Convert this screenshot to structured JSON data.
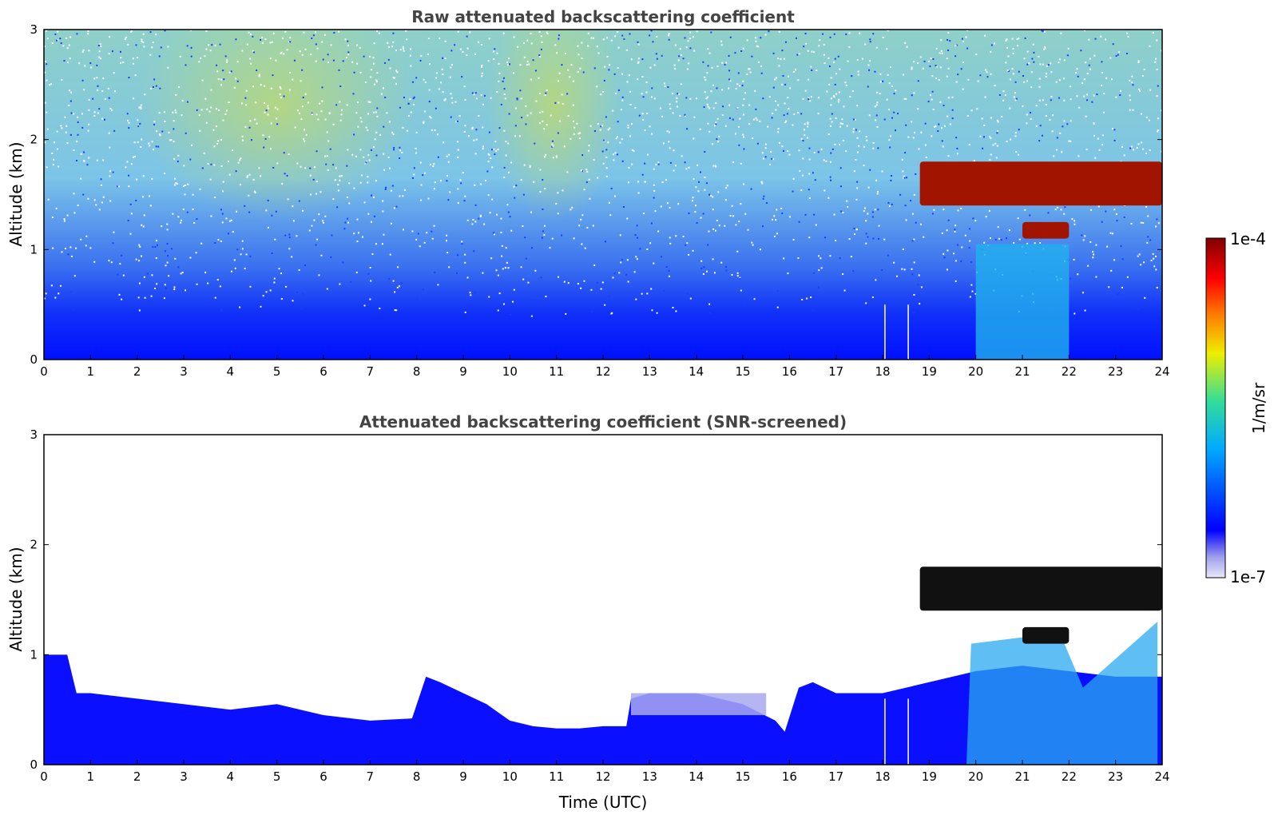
{
  "chart_data": [
    {
      "type": "heatmap",
      "title": "Raw attenuated backscattering coefficient",
      "xlabel": "",
      "ylabel": "Altitude (km)",
      "xlim": [
        0,
        24
      ],
      "ylim": [
        0,
        3
      ],
      "x_ticks": [
        "0",
        "1",
        "2",
        "3",
        "4",
        "5",
        "6",
        "7",
        "8",
        "9",
        "10",
        "11",
        "12",
        "13",
        "14",
        "15",
        "16",
        "17",
        "18",
        "19",
        "20",
        "21",
        "22",
        "23",
        "24"
      ],
      "y_ticks": [
        "0",
        "1",
        "2",
        "3"
      ],
      "grid": false,
      "scale": "log",
      "data_gaps_utc": [
        18.05,
        18.55
      ],
      "features": {
        "boundary_layer_top_km": 0.6,
        "cloud_layer_1": {
          "time_utc": [
            18.8,
            24.0
          ],
          "altitude_km": [
            1.4,
            1.8
          ],
          "level": "1e-4"
        },
        "cloud_layer_2": {
          "time_utc": [
            21.0,
            22.0
          ],
          "altitude_km": [
            1.1,
            1.25
          ],
          "level": "1e-4"
        },
        "noise_enhanced_periods_utc": [
          [
            2.0,
            8.0
          ],
          [
            9.5,
            12.4
          ]
        ]
      }
    },
    {
      "type": "heatmap",
      "title": "Attenuated backscattering coefficient (SNR-screened)",
      "xlabel": "Time (UTC)",
      "ylabel": "Altitude (km)",
      "xlim": [
        0,
        24
      ],
      "ylim": [
        0,
        3
      ],
      "x_ticks": [
        "0",
        "1",
        "2",
        "3",
        "4",
        "5",
        "6",
        "7",
        "8",
        "9",
        "10",
        "11",
        "12",
        "13",
        "14",
        "15",
        "16",
        "17",
        "18",
        "19",
        "20",
        "21",
        "22",
        "23",
        "24"
      ],
      "y_ticks": [
        "0",
        "1",
        "2",
        "3"
      ],
      "grid": false,
      "scale": "log",
      "boundary_layer_top": {
        "time_utc": [
          0,
          0.5,
          0.7,
          1,
          2,
          3,
          4,
          5,
          6,
          7,
          7.9,
          8.2,
          8.5,
          9,
          9.5,
          10,
          10.5,
          11,
          11.5,
          12,
          12.5,
          12.6,
          13,
          14,
          15,
          15.7,
          15.9,
          16.2,
          16.5,
          17,
          18,
          19,
          20,
          21,
          22,
          23,
          24
        ],
        "altitude_km": [
          1.0,
          1.0,
          0.65,
          0.65,
          0.6,
          0.55,
          0.5,
          0.55,
          0.45,
          0.4,
          0.42,
          0.8,
          0.75,
          0.65,
          0.55,
          0.4,
          0.35,
          0.33,
          0.33,
          0.35,
          0.35,
          0.6,
          0.65,
          0.65,
          0.55,
          0.4,
          0.3,
          0.7,
          0.75,
          0.65,
          0.65,
          0.75,
          0.85,
          0.9,
          0.85,
          0.8,
          0.8
        ]
      },
      "features": {
        "cloud_layer_1": {
          "time_utc": [
            18.8,
            24.0
          ],
          "altitude_km": [
            1.4,
            1.8
          ]
        },
        "cloud_layer_2": {
          "time_utc": [
            21.0,
            22.0
          ],
          "altitude_km": [
            1.1,
            1.25
          ]
        }
      }
    }
  ],
  "colorbar": {
    "label": "1/m/sr",
    "max_label": "1e-4",
    "min_label": "1e-7",
    "colors": [
      "#e8e8f8",
      "#a0a0ec",
      "#0000ff",
      "#00aaff",
      "#33dd99",
      "#eeee00",
      "#ff7700",
      "#ff0000",
      "#800000"
    ]
  }
}
